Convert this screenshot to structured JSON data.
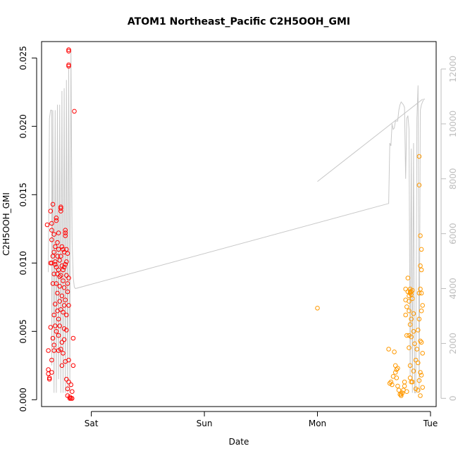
{
  "chart_data": {
    "type": "scatter",
    "title": "ATOM1 Northeast_Pacific C2H5OOH_GMI",
    "xlabel": "Date",
    "ylabel": "C2H5OOH_GMI",
    "x_ticks": [
      "Sat",
      "Sun",
      "Mon",
      "Tue"
    ],
    "x_range_days": [
      -0.44,
      3.05
    ],
    "ylim": [
      -0.0005,
      0.0262
    ],
    "y_ticks": [
      "0.000",
      "0.005",
      "0.010",
      "0.015",
      "0.020",
      "0.025"
    ],
    "y2lim": [
      -300,
      13000
    ],
    "y2_ticks": [
      "0",
      "2000",
      "4000",
      "6000",
      "8000",
      "10000",
      "12000"
    ],
    "colors": {
      "series_red": "#ff0000",
      "series_orange": "#ff9900",
      "altitude_line": "#c8c8c8",
      "axis_right": "#bdbdbd"
    },
    "series": [
      {
        "color": "#ff0000",
        "points": [
          [
            -0.39,
            0.0128
          ],
          [
            -0.38,
            0.0036
          ],
          [
            -0.38,
            0.0022
          ],
          [
            -0.38,
            0.0019
          ],
          [
            -0.37,
            0.0016
          ],
          [
            -0.37,
            0.0015
          ],
          [
            -0.36,
            0.0138
          ],
          [
            -0.36,
            0.01
          ],
          [
            -0.36,
            0.0053
          ],
          [
            -0.35,
            0.0129
          ],
          [
            -0.35,
            0.0117
          ],
          [
            -0.35,
            0.0124
          ],
          [
            -0.35,
            0.0029
          ],
          [
            -0.35,
            0.002
          ],
          [
            -0.34,
            0.0143
          ],
          [
            -0.34,
            0.0105
          ],
          [
            -0.34,
            0.0085
          ],
          [
            -0.34,
            0.0045
          ],
          [
            -0.33,
            0.0108
          ],
          [
            -0.33,
            0.0092
          ],
          [
            -0.33,
            0.0062
          ],
          [
            -0.33,
            0.004
          ],
          [
            -0.33,
            0.0036
          ],
          [
            -0.32,
            0.0112
          ],
          [
            -0.32,
            0.0099
          ],
          [
            -0.32,
            0.007
          ],
          [
            -0.32,
            0.0054
          ],
          [
            -0.31,
            0.0133
          ],
          [
            -0.31,
            0.0131
          ],
          [
            -0.31,
            0.0097
          ],
          [
            -0.31,
            0.0085
          ],
          [
            -0.31,
            0.005
          ],
          [
            -0.3,
            0.0115
          ],
          [
            -0.3,
            0.0105
          ],
          [
            -0.3,
            0.0078
          ],
          [
            -0.3,
            0.0065
          ],
          [
            -0.29,
            0.0122
          ],
          [
            -0.29,
            0.011
          ],
          [
            -0.29,
            0.0095
          ],
          [
            -0.29,
            0.0059
          ],
          [
            -0.29,
            0.0036
          ],
          [
            -0.28,
            0.0102
          ],
          [
            -0.28,
            0.009
          ],
          [
            -0.28,
            0.0072
          ],
          [
            -0.28,
            0.0054
          ],
          [
            -0.27,
            0.0141
          ],
          [
            -0.27,
            0.014
          ],
          [
            -0.27,
            0.0138
          ],
          [
            -0.27,
            0.0105
          ],
          [
            -0.27,
            0.0091
          ],
          [
            -0.27,
            0.0066
          ],
          [
            -0.26,
            0.0098
          ],
          [
            -0.26,
            0.0076
          ],
          [
            -0.26,
            0.0042
          ],
          [
            -0.26,
            0.0025
          ],
          [
            -0.25,
            0.011
          ],
          [
            -0.25,
            0.0087
          ],
          [
            -0.25,
            0.0064
          ],
          [
            -0.25,
            0.0034
          ],
          [
            -0.24,
            0.0108
          ],
          [
            -0.24,
            0.0097
          ],
          [
            -0.24,
            0.0082
          ],
          [
            -0.24,
            0.0069
          ],
          [
            -0.24,
            0.0052
          ],
          [
            -0.23,
            0.0124
          ],
          [
            -0.23,
            0.0122
          ],
          [
            -0.23,
            0.012
          ],
          [
            -0.23,
            0.0099
          ],
          [
            -0.23,
            0.0073
          ],
          [
            -0.23,
            0.0028
          ],
          [
            -0.22,
            0.011
          ],
          [
            -0.22,
            0.0091
          ],
          [
            -0.22,
            0.0062
          ],
          [
            -0.22,
            0.0051
          ],
          [
            -0.22,
            0.0015
          ],
          [
            -0.21,
            0.0107
          ],
          [
            -0.21,
            0.0079
          ],
          [
            -0.21,
            0.0008
          ],
          [
            -0.21,
            0.0003
          ],
          [
            -0.2,
            0.0256
          ],
          [
            -0.2,
            0.0255
          ],
          [
            -0.2,
            0.0245
          ],
          [
            -0.2,
            0.0244
          ],
          [
            -0.2,
            0.0089
          ],
          [
            -0.2,
            0.0069
          ],
          [
            -0.2,
            0.0029
          ],
          [
            -0.2,
            0.0013
          ],
          [
            -0.19,
            0.0002
          ],
          [
            -0.19,
            0.0001
          ],
          [
            -0.18,
            0.0001
          ],
          [
            -0.18,
            0.0011
          ],
          [
            -0.17,
            0.0001
          ],
          [
            -0.17,
            0.0006
          ],
          [
            -0.16,
            0.0045
          ],
          [
            -0.16,
            0.0025
          ],
          [
            -0.15,
            0.0211
          ],
          [
            -0.32,
            0.0101
          ],
          [
            -0.3,
            0.0092
          ],
          [
            -0.28,
            0.0083
          ],
          [
            -0.26,
            0.0112
          ],
          [
            -0.25,
            0.0095
          ],
          [
            -0.24,
            0.0044
          ],
          [
            -0.22,
            0.0101
          ],
          [
            -0.21,
            0.0085
          ],
          [
            -0.35,
            0.01
          ],
          [
            -0.33,
            0.0121
          ],
          [
            -0.29,
            0.0047
          ],
          [
            -0.27,
            0.0037
          ]
        ]
      },
      {
        "color": "#ff9900",
        "points": [
          [
            2.0,
            0.0067
          ],
          [
            2.63,
            0.0037
          ],
          [
            2.64,
            0.0012
          ],
          [
            2.65,
            0.0013
          ],
          [
            2.66,
            0.0011
          ],
          [
            2.67,
            0.0017
          ],
          [
            2.68,
            0.0035
          ],
          [
            2.69,
            0.0025
          ],
          [
            2.69,
            0.002
          ],
          [
            2.7,
            0.0022
          ],
          [
            2.7,
            0.0016
          ],
          [
            2.71,
            0.001
          ],
          [
            2.71,
            0.0023
          ],
          [
            2.72,
            0.0007
          ],
          [
            2.73,
            0.0004
          ],
          [
            2.74,
            0.0003
          ],
          [
            2.74,
            0.0004
          ],
          [
            2.75,
            0.0005
          ],
          [
            2.76,
            0.0007
          ],
          [
            2.77,
            0.001
          ],
          [
            2.77,
            0.0013
          ],
          [
            2.78,
            0.0081
          ],
          [
            2.78,
            0.0073
          ],
          [
            2.78,
            0.0062
          ],
          [
            2.79,
            0.0047
          ],
          [
            2.79,
            0.0068
          ],
          [
            2.79,
            0.0006
          ],
          [
            2.8,
            0.0079
          ],
          [
            2.8,
            0.0089
          ],
          [
            2.81,
            0.0076
          ],
          [
            2.81,
            0.0072
          ],
          [
            2.81,
            0.0065
          ],
          [
            2.81,
            0.0047
          ],
          [
            2.81,
            0.0038
          ],
          [
            2.82,
            0.0081
          ],
          [
            2.82,
            0.0079
          ],
          [
            2.82,
            0.0078
          ],
          [
            2.82,
            0.0055
          ],
          [
            2.82,
            0.0025
          ],
          [
            2.82,
            0.0016
          ],
          [
            2.83,
            0.0077
          ],
          [
            2.83,
            0.0079
          ],
          [
            2.83,
            0.0059
          ],
          [
            2.83,
            0.0046
          ],
          [
            2.83,
            0.0013
          ],
          [
            2.84,
            0.008
          ],
          [
            2.84,
            0.0074
          ],
          [
            2.84,
            0.0013
          ],
          [
            2.85,
            0.0063
          ],
          [
            2.85,
            0.005
          ],
          [
            2.85,
            0.0021
          ],
          [
            2.86,
            0.0041
          ],
          [
            2.87,
            0.0029
          ],
          [
            2.87,
            0.0008
          ],
          [
            2.88,
            0.0037
          ],
          [
            2.89,
            0.0051
          ],
          [
            2.89,
            0.0027
          ],
          [
            2.89,
            0.0007
          ],
          [
            2.9,
            0.0178
          ],
          [
            2.9,
            0.0157
          ],
          [
            2.9,
            0.0078
          ],
          [
            2.9,
            0.0059
          ],
          [
            2.9,
            0.0014
          ],
          [
            2.91,
            0.012
          ],
          [
            2.91,
            0.0098
          ],
          [
            2.91,
            0.0081
          ],
          [
            2.91,
            0.0043
          ],
          [
            2.91,
            0.002
          ],
          [
            2.91,
            0.0003
          ],
          [
            2.92,
            0.011
          ],
          [
            2.92,
            0.0095
          ],
          [
            2.92,
            0.0078
          ],
          [
            2.92,
            0.0065
          ],
          [
            2.92,
            0.0042
          ],
          [
            2.92,
            0.0018
          ],
          [
            2.93,
            0.0069
          ],
          [
            2.93,
            0.0034
          ],
          [
            2.93,
            0.0009
          ]
        ]
      }
    ],
    "altitude_line": {
      "color": "#c8c8c8",
      "points": [
        [
          -0.38,
          4600
        ],
        [
          -0.37,
          10200
        ],
        [
          -0.36,
          10500
        ],
        [
          -0.35,
          10500
        ],
        [
          -0.35,
          1200
        ],
        [
          -0.34,
          10500
        ],
        [
          -0.33,
          200
        ],
        [
          -0.32,
          10500
        ],
        [
          -0.31,
          200
        ],
        [
          -0.3,
          10700
        ],
        [
          -0.29,
          700
        ],
        [
          -0.28,
          10700
        ],
        [
          -0.27,
          200
        ],
        [
          -0.26,
          11200
        ],
        [
          -0.25,
          200
        ],
        [
          -0.24,
          11300
        ],
        [
          -0.23,
          200
        ],
        [
          -0.22,
          11600
        ],
        [
          -0.21,
          200
        ],
        [
          -0.2,
          12100
        ],
        [
          -0.19,
          200
        ],
        [
          -0.18,
          12700
        ],
        [
          -0.17,
          5800
        ],
        [
          -0.16,
          4400
        ],
        [
          -0.15,
          4050
        ],
        [
          -0.14,
          4000
        ],
        [
          2.63,
          7100
        ],
        [
          2.64,
          9300
        ],
        [
          2.65,
          9200
        ],
        [
          2.66,
          10000
        ],
        [
          2.67,
          9800
        ],
        [
          2.68,
          9850
        ],
        [
          2.69,
          10100
        ],
        [
          2.7,
          10100
        ],
        [
          2.71,
          10100
        ],
        [
          2.72,
          10500
        ],
        [
          2.73,
          10700
        ],
        [
          2.74,
          10800
        ],
        [
          2.76,
          10700
        ],
        [
          2.77,
          10600
        ],
        [
          2.78,
          8000
        ],
        [
          2.79,
          10200
        ],
        [
          2.8,
          10300
        ],
        [
          2.81,
          9800
        ],
        [
          2.82,
          800
        ],
        [
          2.83,
          9100
        ],
        [
          2.84,
          200
        ],
        [
          2.85,
          9300
        ],
        [
          2.86,
          200
        ],
        [
          2.87,
          200
        ],
        [
          2.88,
          10200
        ],
        [
          2.89,
          11400
        ],
        [
          2.9,
          200
        ],
        [
          2.91,
          10500
        ],
        [
          2.92,
          10700
        ],
        [
          2.93,
          10800
        ],
        [
          2.94,
          10900
        ],
        [
          2.95,
          10900
        ]
      ],
      "extra_segment": [
        [
          2.0,
          7900
        ],
        [
          2.93,
          10900
        ]
      ]
    }
  }
}
